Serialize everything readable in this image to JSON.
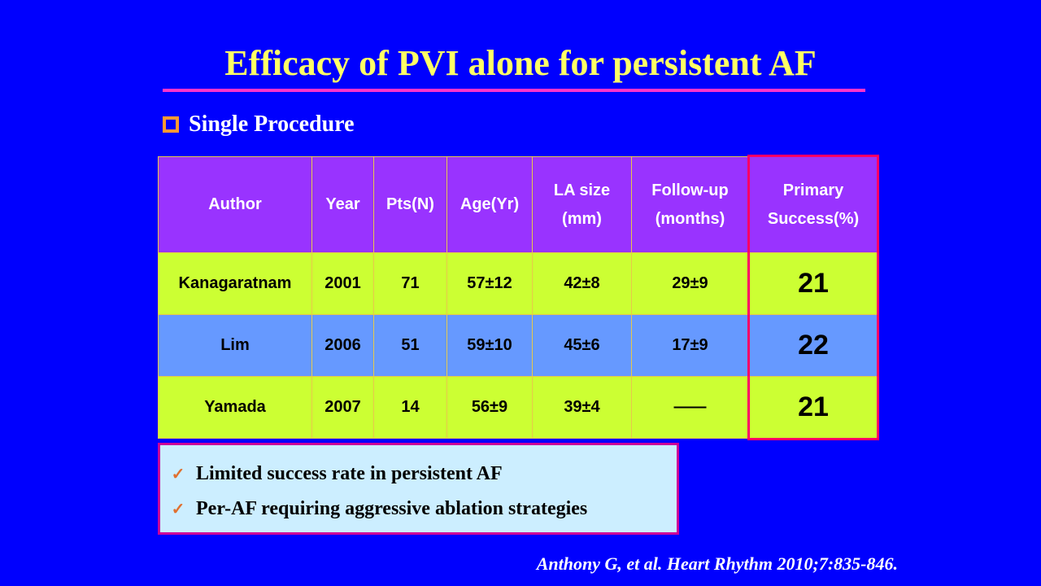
{
  "title": "Efficacy of PVI alone for persistent AF",
  "subtitle": "Single Procedure",
  "table": {
    "headers": [
      [
        "Author",
        ""
      ],
      [
        "Year",
        ""
      ],
      [
        "Pts(N)",
        ""
      ],
      [
        "Age(Yr)",
        ""
      ],
      [
        "LA size",
        "(mm)"
      ],
      [
        "Follow-up",
        "(months)"
      ],
      [
        "Primary",
        "Success(%)"
      ]
    ],
    "rows": [
      [
        "Kanagaratnam",
        "2001",
        "71",
        "57±12",
        "42±8",
        "29±9",
        "21"
      ],
      [
        "Lim",
        "2006",
        "51",
        "59±10",
        "45±6",
        "17±9",
        "22"
      ],
      [
        "Yamada",
        "2007",
        "14",
        "56±9",
        "39±4",
        "——",
        "21"
      ]
    ]
  },
  "bullets": [
    "Limited success rate in persistent AF",
    "Per-AF requiring aggressive ablation strategies"
  ],
  "citation": "Anthony G, et al. Heart Rhythm 2010;7:835-846.",
  "colors": {
    "background": "#0000fe",
    "title": "#ffff66",
    "header": "#9933ff",
    "row_yellow": "#ccff33",
    "row_blue": "#6699ff",
    "highlight": "#ff0066"
  }
}
